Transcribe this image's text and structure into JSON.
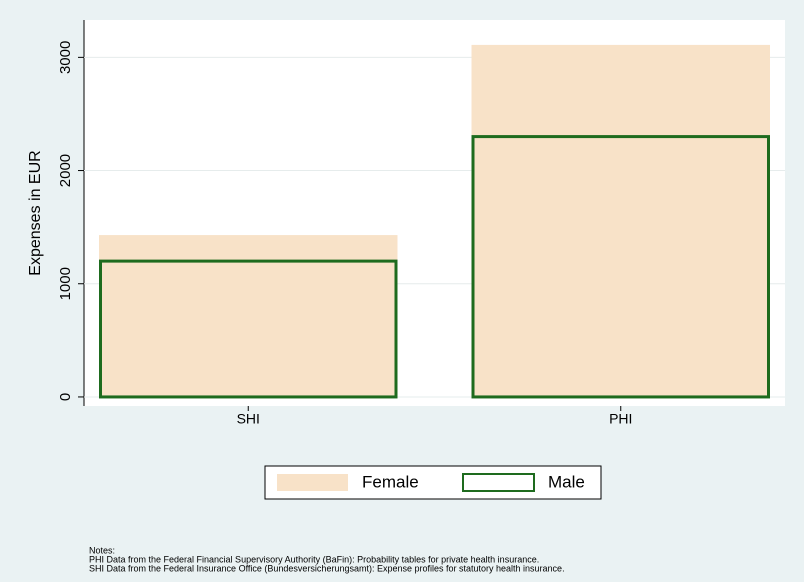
{
  "chart_data": {
    "type": "overlaid_bar",
    "ylabel": "Expenses in EUR",
    "categories": [
      "SHI",
      "PHI"
    ],
    "series": [
      {
        "name": "Female",
        "color": "#f8e2c8",
        "style": "fill",
        "values": [
          1430,
          3110
        ]
      },
      {
        "name": "Male",
        "color": "#1e6b1e",
        "style": "outline",
        "values": [
          1200,
          2300
        ]
      }
    ],
    "ylim": [
      -80,
      3330
    ],
    "yticks": [
      0,
      1000,
      2000,
      3000
    ],
    "grid": true,
    "notes": [
      "Notes:",
      "PHI Data from the Federal Financial Supervisory Authority (BaFin): Probability tables for private health insurance.",
      "SHI Data from the Federal Insurance Office (Bundesversicherungsamt): Expense profiles for statutory health insurance."
    ]
  }
}
